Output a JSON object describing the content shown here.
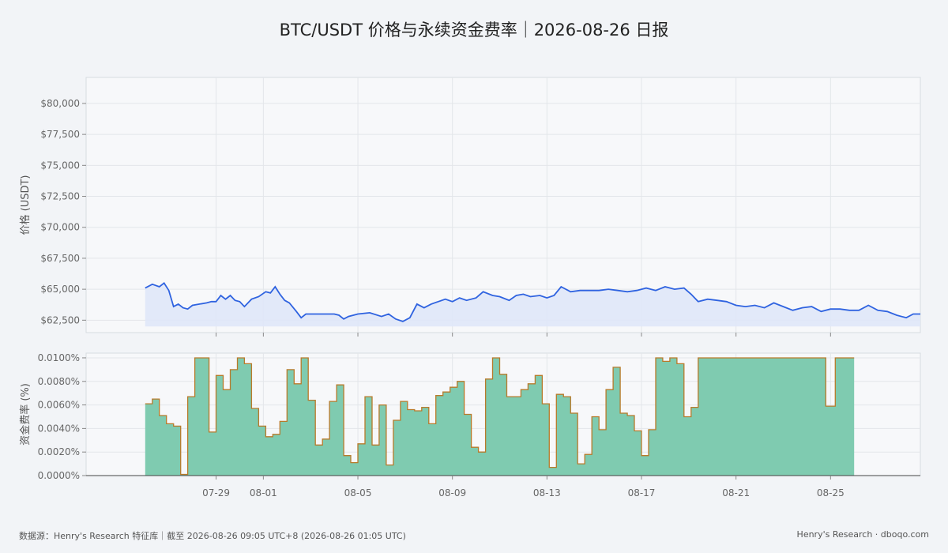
{
  "title": "BTC/USDT 价格与永续资金费率｜2026-08-26 日报",
  "footer": {
    "source": "数据源：Henry's Research 特征库｜截至 2026-08-26 09:05 UTC+8 (2026-08-26 01:05 UTC)",
    "brand": "Henry's Research · dboqo.com"
  },
  "colors": {
    "price_line": "#2f63e0",
    "price_fill": "#dfe7f8",
    "funding_fill": "#7fcbb0",
    "funding_line": "#b87a2a",
    "grid": "#e3e6ea",
    "plot_bg": "#f7f8fa"
  },
  "chart_data": [
    {
      "type": "line",
      "name": "price",
      "ylabel": "价格 (USDT)",
      "ylim": [
        61500,
        82100
      ],
      "yticks": [
        62500,
        65000,
        67500,
        70000,
        72500,
        75000,
        77500,
        80000
      ],
      "ytick_labels": [
        "$62,500",
        "$65,000",
        "$67,500",
        "$70,000",
        "$72,500",
        "$75,000",
        "$77,500",
        "$80,000"
      ],
      "xlim": [
        -4.5,
        30.8
      ],
      "xticks": [
        1,
        3,
        7,
        11,
        15,
        19,
        23,
        27
      ],
      "xtick_labels": [
        "07-29",
        "08-01",
        "08-05",
        "08-09",
        "08-13",
        "08-17",
        "08-21",
        "08-25"
      ],
      "x_note": "x values are days counted from 07-28",
      "grid": true,
      "points": [
        [
          -2.0,
          65100
        ],
        [
          -1.7,
          65400
        ],
        [
          -1.4,
          65200
        ],
        [
          -1.2,
          65500
        ],
        [
          -1.0,
          64900
        ],
        [
          -0.8,
          63600
        ],
        [
          -0.6,
          63800
        ],
        [
          -0.4,
          63500
        ],
        [
          -0.2,
          63400
        ],
        [
          0.0,
          63700
        ],
        [
          0.3,
          63800
        ],
        [
          0.6,
          63900
        ],
        [
          0.8,
          64000
        ],
        [
          1.0,
          64000
        ],
        [
          1.2,
          64500
        ],
        [
          1.4,
          64200
        ],
        [
          1.6,
          64500
        ],
        [
          1.8,
          64100
        ],
        [
          2.0,
          64000
        ],
        [
          2.2,
          63600
        ],
        [
          2.5,
          64200
        ],
        [
          2.8,
          64400
        ],
        [
          3.1,
          64800
        ],
        [
          3.3,
          64700
        ],
        [
          3.5,
          65200
        ],
        [
          3.7,
          64600
        ],
        [
          3.9,
          64100
        ],
        [
          4.1,
          63900
        ],
        [
          4.4,
          63200
        ],
        [
          4.6,
          62700
        ],
        [
          4.8,
          63000
        ],
        [
          5.0,
          63000
        ],
        [
          5.5,
          63000
        ],
        [
          6.0,
          63000
        ],
        [
          6.2,
          62900
        ],
        [
          6.4,
          62600
        ],
        [
          6.6,
          62800
        ],
        [
          7.0,
          63000
        ],
        [
          7.5,
          63100
        ],
        [
          8.0,
          62800
        ],
        [
          8.3,
          63000
        ],
        [
          8.6,
          62600
        ],
        [
          8.9,
          62400
        ],
        [
          9.2,
          62700
        ],
        [
          9.5,
          63800
        ],
        [
          9.8,
          63500
        ],
        [
          10.1,
          63800
        ],
        [
          10.4,
          64000
        ],
        [
          10.7,
          64200
        ],
        [
          11.0,
          64000
        ],
        [
          11.3,
          64300
        ],
        [
          11.6,
          64100
        ],
        [
          12.0,
          64300
        ],
        [
          12.3,
          64800
        ],
        [
          12.7,
          64500
        ],
        [
          13.0,
          64400
        ],
        [
          13.4,
          64100
        ],
        [
          13.7,
          64500
        ],
        [
          14.0,
          64600
        ],
        [
          14.3,
          64400
        ],
        [
          14.7,
          64500
        ],
        [
          15.0,
          64300
        ],
        [
          15.3,
          64500
        ],
        [
          15.6,
          65200
        ],
        [
          16.0,
          64800
        ],
        [
          16.4,
          64900
        ],
        [
          16.8,
          64900
        ],
        [
          17.2,
          64900
        ],
        [
          17.6,
          65000
        ],
        [
          18.0,
          64900
        ],
        [
          18.4,
          64800
        ],
        [
          18.8,
          64900
        ],
        [
          19.2,
          65100
        ],
        [
          19.6,
          64900
        ],
        [
          20.0,
          65200
        ],
        [
          20.4,
          65000
        ],
        [
          20.8,
          65100
        ],
        [
          21.1,
          64600
        ],
        [
          21.4,
          64000
        ],
        [
          21.8,
          64200
        ],
        [
          22.2,
          64100
        ],
        [
          22.6,
          64000
        ],
        [
          23.0,
          63700
        ],
        [
          23.4,
          63600
        ],
        [
          23.8,
          63700
        ],
        [
          24.2,
          63500
        ],
        [
          24.6,
          63900
        ],
        [
          25.0,
          63600
        ],
        [
          25.4,
          63300
        ],
        [
          25.8,
          63500
        ],
        [
          26.2,
          63600
        ],
        [
          26.6,
          63200
        ],
        [
          27.0,
          63400
        ],
        [
          27.4,
          63400
        ],
        [
          27.8,
          63300
        ],
        [
          28.2,
          63300
        ],
        [
          28.6,
          63700
        ],
        [
          29.0,
          63300
        ],
        [
          29.4,
          63200
        ],
        [
          29.8,
          62900
        ],
        [
          30.2,
          62700
        ],
        [
          30.5,
          63000
        ],
        [
          30.8,
          63000
        ]
      ]
    },
    {
      "type": "area",
      "name": "funding",
      "ylabel": "资金费率 (%)",
      "ylim": [
        0,
        0.0104
      ],
      "yticks": [
        0.0,
        0.002,
        0.004,
        0.006,
        0.008,
        0.01
      ],
      "ytick_labels": [
        "0.0000%",
        "0.0020%",
        "0.0040%",
        "0.0060%",
        "0.0080%",
        "0.0100%"
      ],
      "xlim": [
        -4.5,
        30.8
      ],
      "xticks": [
        1,
        3,
        7,
        11,
        15,
        19,
        23,
        27
      ],
      "xtick_labels": [
        "07-29",
        "08-01",
        "08-05",
        "08-09",
        "08-13",
        "08-17",
        "08-21",
        "08-25"
      ],
      "x_note": "x values are days counted from 07-28",
      "step": true,
      "grid": true,
      "points": [
        [
          -2.0,
          0.0061
        ],
        [
          -1.7,
          0.0065
        ],
        [
          -1.4,
          0.0051
        ],
        [
          -1.1,
          0.0044
        ],
        [
          -0.8,
          0.0042
        ],
        [
          -0.5,
          0.0001
        ],
        [
          -0.2,
          0.0067
        ],
        [
          0.1,
          0.01
        ],
        [
          0.7,
          0.0037
        ],
        [
          1.0,
          0.0085
        ],
        [
          1.3,
          0.0073
        ],
        [
          1.6,
          0.009
        ],
        [
          1.9,
          0.01
        ],
        [
          2.2,
          0.0095
        ],
        [
          2.5,
          0.0057
        ],
        [
          2.8,
          0.0042
        ],
        [
          3.1,
          0.0033
        ],
        [
          3.4,
          0.0035
        ],
        [
          3.7,
          0.0046
        ],
        [
          4.0,
          0.009
        ],
        [
          4.3,
          0.0078
        ],
        [
          4.6,
          0.01
        ],
        [
          4.9,
          0.0064
        ],
        [
          5.2,
          0.0026
        ],
        [
          5.5,
          0.0031
        ],
        [
          5.8,
          0.0063
        ],
        [
          6.1,
          0.0077
        ],
        [
          6.4,
          0.0017
        ],
        [
          6.7,
          0.0011
        ],
        [
          7.0,
          0.0027
        ],
        [
          7.3,
          0.0067
        ],
        [
          7.6,
          0.0026
        ],
        [
          7.9,
          0.006
        ],
        [
          8.2,
          0.0009
        ],
        [
          8.5,
          0.0047
        ],
        [
          8.8,
          0.0063
        ],
        [
          9.1,
          0.0056
        ],
        [
          9.4,
          0.0055
        ],
        [
          9.7,
          0.0058
        ],
        [
          10.0,
          0.0044
        ],
        [
          10.3,
          0.0068
        ],
        [
          10.6,
          0.0071
        ],
        [
          10.9,
          0.0075
        ],
        [
          11.2,
          0.008
        ],
        [
          11.5,
          0.0052
        ],
        [
          11.8,
          0.0024
        ],
        [
          12.1,
          0.002
        ],
        [
          12.4,
          0.0082
        ],
        [
          12.7,
          0.01
        ],
        [
          13.0,
          0.0086
        ],
        [
          13.3,
          0.0067
        ],
        [
          13.6,
          0.0067
        ],
        [
          13.9,
          0.0073
        ],
        [
          14.2,
          0.0078
        ],
        [
          14.5,
          0.0085
        ],
        [
          14.8,
          0.0061
        ],
        [
          15.1,
          0.0007
        ],
        [
          15.4,
          0.0069
        ],
        [
          15.7,
          0.0067
        ],
        [
          16.0,
          0.0053
        ],
        [
          16.3,
          0.001
        ],
        [
          16.6,
          0.0018
        ],
        [
          16.9,
          0.005
        ],
        [
          17.2,
          0.0039
        ],
        [
          17.5,
          0.0073
        ],
        [
          17.8,
          0.0092
        ],
        [
          18.1,
          0.0053
        ],
        [
          18.4,
          0.0051
        ],
        [
          18.7,
          0.0038
        ],
        [
          19.0,
          0.0017
        ],
        [
          19.3,
          0.0039
        ],
        [
          19.6,
          0.01
        ],
        [
          19.9,
          0.0097
        ],
        [
          20.2,
          0.01
        ],
        [
          20.5,
          0.0095
        ],
        [
          20.8,
          0.005
        ],
        [
          21.1,
          0.0058
        ],
        [
          21.4,
          0.01
        ],
        [
          23.0,
          0.01
        ],
        [
          24.0,
          0.01
        ],
        [
          25.0,
          0.01
        ],
        [
          26.0,
          0.01
        ],
        [
          26.8,
          0.0059
        ],
        [
          27.2,
          0.01
        ],
        [
          27.6,
          0.01
        ],
        [
          28.0,
          0.01
        ]
      ]
    }
  ]
}
